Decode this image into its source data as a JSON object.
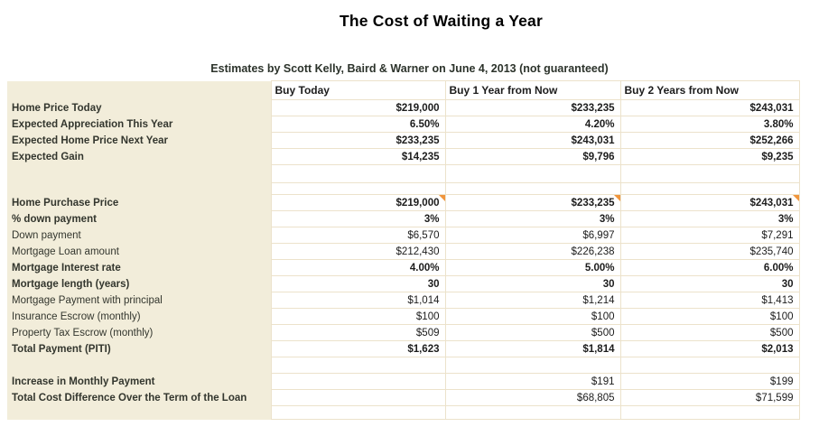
{
  "page": {
    "title": "The Cost of Waiting a Year",
    "subtitle": "Estimates by Scott Kelly, Baird & Warner on June 4, 2013 (not guaranteed)"
  },
  "colors": {
    "label_column_bg": "#f2edda",
    "grid_border": "#ece2cb",
    "comment_flag": "#f0953c",
    "label_text": "#33362e",
    "value_text": "#1c1c1c",
    "title_text": "#000000",
    "subtitle_text": "#2c332b"
  },
  "table": {
    "column_headers": [
      "Buy Today",
      "Buy 1 Year from Now",
      "Buy 2 Years from Now"
    ],
    "rows": [
      {
        "kind": "data",
        "label": "Home Price Today",
        "label_bold": true,
        "values": [
          "$219,000",
          "$233,235",
          "$243,031"
        ],
        "values_bold": true
      },
      {
        "kind": "data",
        "label": "Expected Appreciation This Year",
        "label_bold": true,
        "values": [
          "6.50%",
          "4.20%",
          "3.80%"
        ],
        "values_bold": true
      },
      {
        "kind": "data",
        "label": "Expected Home Price Next Year",
        "label_bold": true,
        "values": [
          "$233,235",
          "$243,031",
          "$252,266"
        ],
        "values_bold": true
      },
      {
        "kind": "data",
        "label": "Expected Gain",
        "label_bold": true,
        "values": [
          "$14,235",
          "$9,796",
          "$9,235"
        ],
        "values_bold": true
      },
      {
        "kind": "blank-tall"
      },
      {
        "kind": "blank-short"
      },
      {
        "kind": "data",
        "label": "Home Purchase Price",
        "label_bold": true,
        "values": [
          "$219,000",
          "$233,235",
          "$243,031"
        ],
        "values_bold": true,
        "comment": true
      },
      {
        "kind": "data",
        "label": "% down payment",
        "label_bold": true,
        "values": [
          "3%",
          "3%",
          "3%"
        ],
        "values_bold": true
      },
      {
        "kind": "data",
        "label": "Down payment",
        "label_bold": false,
        "values": [
          "$6,570",
          "$6,997",
          "$7,291"
        ],
        "values_bold": false
      },
      {
        "kind": "data",
        "label": "Mortgage Loan amount",
        "label_bold": false,
        "values": [
          "$212,430",
          "$226,238",
          "$235,740"
        ],
        "values_bold": false
      },
      {
        "kind": "data",
        "label": "Mortgage Interest rate",
        "label_bold": true,
        "values": [
          "4.00%",
          "5.00%",
          "6.00%"
        ],
        "values_bold": true
      },
      {
        "kind": "data",
        "label": "Mortgage length (years)",
        "label_bold": true,
        "values": [
          "30",
          "30",
          "30"
        ],
        "values_bold": true
      },
      {
        "kind": "data",
        "label": "Mortgage Payment with principal",
        "label_bold": false,
        "values": [
          "$1,014",
          "$1,214",
          "$1,413"
        ],
        "values_bold": false
      },
      {
        "kind": "data",
        "label": "Insurance Escrow (monthly)",
        "label_bold": false,
        "values": [
          "$100",
          "$100",
          "$100"
        ],
        "values_bold": false
      },
      {
        "kind": "data",
        "label": "Property Tax Escrow (monthly)",
        "label_bold": false,
        "values": [
          "$509",
          "$500",
          "$500"
        ],
        "values_bold": false
      },
      {
        "kind": "data",
        "label": "Total Payment (PITI)",
        "label_bold": true,
        "values": [
          "$1,623",
          "$1,814",
          "$2,013"
        ],
        "values_bold": true
      },
      {
        "kind": "blank-mid"
      },
      {
        "kind": "data",
        "label": "Increase in Monthly Payment",
        "label_bold": true,
        "values": [
          "",
          "$191",
          "$199"
        ],
        "values_bold": false
      },
      {
        "kind": "data",
        "label": "Total Cost Difference Over the Term of the Loan",
        "label_bold": true,
        "values": [
          "",
          "$68,805",
          "$71,599"
        ],
        "values_bold": false
      },
      {
        "kind": "blank-end"
      }
    ]
  }
}
